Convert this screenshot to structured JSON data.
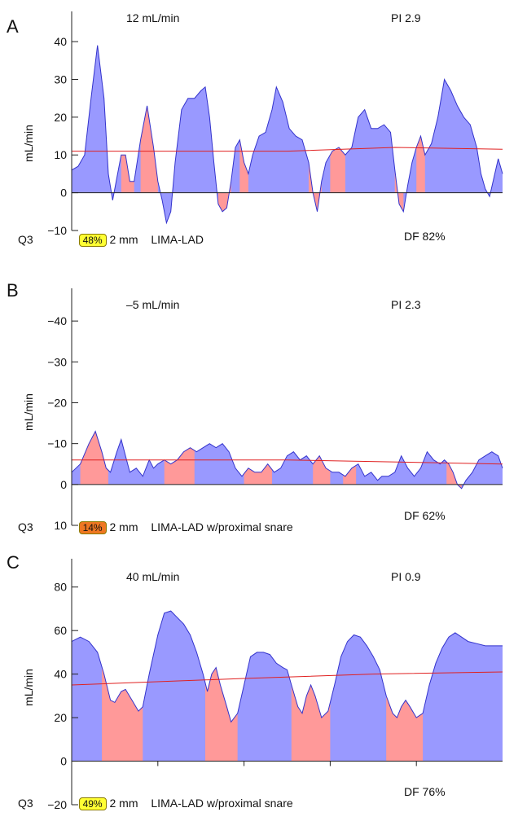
{
  "chart_data": [
    {
      "type": "area",
      "panel_letter": "A",
      "flow": "12 mL/min",
      "pi": "PI 2.9",
      "ylabel": "mL/min",
      "yticks": [
        "40",
        "30",
        "20",
        "10",
        "0",
        "−10"
      ],
      "ytick_values": [
        40,
        30,
        20,
        10,
        0,
        -10
      ],
      "ylim": [
        -10,
        48
      ],
      "inverted": false,
      "quartile": "Q3",
      "badge_text": "48%",
      "badge_color": "#ffff33",
      "probe": "2 mm",
      "vessel": "LIMA-LAD",
      "df": "DF 82%",
      "fill_color": "#9999ff",
      "reverse_color": "#ff9999",
      "mean_line": [
        [
          0,
          11
        ],
        [
          0.5,
          11
        ],
        [
          0.75,
          12
        ],
        [
          1.0,
          11.5
        ]
      ],
      "waveform": [
        [
          0,
          6
        ],
        [
          0.015,
          7
        ],
        [
          0.03,
          10
        ],
        [
          0.045,
          25
        ],
        [
          0.06,
          39
        ],
        [
          0.075,
          25
        ],
        [
          0.085,
          5
        ],
        [
          0.095,
          -2
        ],
        [
          0.105,
          4
        ],
        [
          0.115,
          10
        ],
        [
          0.125,
          10
        ],
        [
          0.135,
          3
        ],
        [
          0.145,
          3
        ],
        [
          0.16,
          14
        ],
        [
          0.175,
          23
        ],
        [
          0.19,
          12
        ],
        [
          0.2,
          3
        ],
        [
          0.21,
          -2
        ],
        [
          0.22,
          -8
        ],
        [
          0.23,
          -5
        ],
        [
          0.24,
          8
        ],
        [
          0.255,
          22
        ],
        [
          0.27,
          25
        ],
        [
          0.285,
          25
        ],
        [
          0.3,
          27
        ],
        [
          0.31,
          28
        ],
        [
          0.32,
          20
        ],
        [
          0.33,
          8
        ],
        [
          0.34,
          -3
        ],
        [
          0.35,
          -5
        ],
        [
          0.36,
          -4
        ],
        [
          0.37,
          3
        ],
        [
          0.38,
          12
        ],
        [
          0.39,
          14
        ],
        [
          0.4,
          8
        ],
        [
          0.41,
          5
        ],
        [
          0.42,
          10
        ],
        [
          0.435,
          15
        ],
        [
          0.45,
          16
        ],
        [
          0.465,
          22
        ],
        [
          0.475,
          28
        ],
        [
          0.49,
          24
        ],
        [
          0.505,
          17
        ],
        [
          0.52,
          15
        ],
        [
          0.535,
          14
        ],
        [
          0.55,
          8
        ],
        [
          0.56,
          0
        ],
        [
          0.57,
          -5
        ],
        [
          0.58,
          3
        ],
        [
          0.59,
          8
        ],
        [
          0.605,
          11
        ],
        [
          0.62,
          12
        ],
        [
          0.635,
          10
        ],
        [
          0.65,
          12
        ],
        [
          0.665,
          20
        ],
        [
          0.68,
          22
        ],
        [
          0.695,
          17
        ],
        [
          0.71,
          17
        ],
        [
          0.725,
          18
        ],
        [
          0.74,
          16
        ],
        [
          0.75,
          6
        ],
        [
          0.76,
          -3
        ],
        [
          0.77,
          -5
        ],
        [
          0.78,
          2
        ],
        [
          0.79,
          8
        ],
        [
          0.8,
          12
        ],
        [
          0.81,
          15
        ],
        [
          0.82,
          10
        ],
        [
          0.835,
          13
        ],
        [
          0.85,
          20
        ],
        [
          0.865,
          30
        ],
        [
          0.88,
          27
        ],
        [
          0.895,
          23
        ],
        [
          0.91,
          20
        ],
        [
          0.925,
          18
        ],
        [
          0.94,
          12
        ],
        [
          0.95,
          5
        ],
        [
          0.96,
          1
        ],
        [
          0.97,
          -1
        ],
        [
          0.98,
          4
        ],
        [
          0.99,
          9
        ],
        [
          1.0,
          5
        ]
      ],
      "reverse_bands": [
        [
          0.115,
          0.145
        ],
        [
          0.16,
          0.2
        ],
        [
          0.34,
          0.37
        ],
        [
          0.39,
          0.41
        ],
        [
          0.55,
          0.58
        ],
        [
          0.6,
          0.635
        ],
        [
          0.75,
          0.77
        ],
        [
          0.8,
          0.82
        ]
      ]
    },
    {
      "type": "area",
      "panel_letter": "B",
      "flow": "–5 mL/min",
      "pi": "PI 2.3",
      "ylabel": "mL/min",
      "yticks": [
        "−40",
        "−30",
        "−20",
        "−10",
        "0",
        "10"
      ],
      "ytick_values": [
        -40,
        -30,
        -20,
        -10,
        0,
        10
      ],
      "ylim": [
        10,
        -48
      ],
      "inverted": true,
      "quartile": "Q3",
      "badge_text": "14%",
      "badge_color": "#ee7722",
      "probe": "2 mm",
      "vessel": "LIMA-LAD w/proximal snare",
      "df": "DF 62%",
      "fill_color": "#9999ff",
      "reverse_color": "#ff9999",
      "mean_line": [
        [
          0,
          -6
        ],
        [
          0.5,
          -6
        ],
        [
          1.0,
          -5
        ]
      ],
      "waveform": [
        [
          0,
          -3
        ],
        [
          0.02,
          -5
        ],
        [
          0.04,
          -10
        ],
        [
          0.055,
          -13
        ],
        [
          0.07,
          -8
        ],
        [
          0.08,
          -4
        ],
        [
          0.09,
          -3
        ],
        [
          0.105,
          -8
        ],
        [
          0.115,
          -11
        ],
        [
          0.125,
          -7
        ],
        [
          0.135,
          -3
        ],
        [
          0.15,
          -4
        ],
        [
          0.165,
          -2
        ],
        [
          0.18,
          -6
        ],
        [
          0.19,
          -4
        ],
        [
          0.2,
          -5
        ],
        [
          0.215,
          -6
        ],
        [
          0.23,
          -5
        ],
        [
          0.245,
          -6
        ],
        [
          0.26,
          -8
        ],
        [
          0.275,
          -9
        ],
        [
          0.29,
          -8
        ],
        [
          0.305,
          -9
        ],
        [
          0.32,
          -10
        ],
        [
          0.335,
          -9
        ],
        [
          0.35,
          -10
        ],
        [
          0.365,
          -8
        ],
        [
          0.38,
          -4
        ],
        [
          0.395,
          -2
        ],
        [
          0.41,
          -4
        ],
        [
          0.425,
          -3
        ],
        [
          0.44,
          -3
        ],
        [
          0.455,
          -5
        ],
        [
          0.47,
          -3
        ],
        [
          0.485,
          -4
        ],
        [
          0.5,
          -7
        ],
        [
          0.515,
          -8
        ],
        [
          0.53,
          -6
        ],
        [
          0.545,
          -7
        ],
        [
          0.56,
          -5
        ],
        [
          0.575,
          -7
        ],
        [
          0.59,
          -4
        ],
        [
          0.605,
          -3
        ],
        [
          0.62,
          -3
        ],
        [
          0.635,
          -2
        ],
        [
          0.65,
          -4
        ],
        [
          0.665,
          -5
        ],
        [
          0.68,
          -2
        ],
        [
          0.695,
          -3
        ],
        [
          0.71,
          -1
        ],
        [
          0.72,
          -2
        ],
        [
          0.735,
          -2
        ],
        [
          0.75,
          -3
        ],
        [
          0.765,
          -7
        ],
        [
          0.78,
          -4
        ],
        [
          0.795,
          -2
        ],
        [
          0.81,
          -4
        ],
        [
          0.825,
          -8
        ],
        [
          0.84,
          -6
        ],
        [
          0.855,
          -5
        ],
        [
          0.865,
          -6
        ],
        [
          0.875,
          -5
        ],
        [
          0.885,
          -3
        ],
        [
          0.895,
          0
        ],
        [
          0.905,
          1
        ],
        [
          0.915,
          -1
        ],
        [
          0.93,
          -3
        ],
        [
          0.945,
          -6
        ],
        [
          0.96,
          -7
        ],
        [
          0.975,
          -8
        ],
        [
          0.99,
          -7
        ],
        [
          1.0,
          -4
        ]
      ],
      "reverse_bands": [
        [
          0.02,
          0.085
        ],
        [
          0.215,
          0.285
        ],
        [
          0.4,
          0.465
        ],
        [
          0.56,
          0.6
        ],
        [
          0.63,
          0.66
        ],
        [
          0.87,
          0.905
        ]
      ]
    },
    {
      "type": "area",
      "panel_letter": "C",
      "flow": "40 mL/min",
      "pi": "PI 0.9",
      "ylabel": "mL/min",
      "yticks": [
        "80",
        "60",
        "40",
        "20",
        "0",
        "−20"
      ],
      "ytick_values": [
        80,
        60,
        40,
        20,
        0,
        -20
      ],
      "ylim": [
        -20,
        93
      ],
      "inverted": false,
      "quartile": "Q3",
      "badge_text": "49%",
      "badge_color": "#ffff33",
      "probe": "2 mm",
      "vessel": "LIMA-LAD w/proximal snare",
      "df": "DF 76%",
      "fill_color": "#9999ff",
      "reverse_color": "#ff9999",
      "mean_line": [
        [
          0,
          35
        ],
        [
          0.4,
          38
        ],
        [
          0.7,
          40
        ],
        [
          1.0,
          41
        ]
      ],
      "waveform": [
        [
          0,
          55
        ],
        [
          0.02,
          57
        ],
        [
          0.04,
          55
        ],
        [
          0.06,
          50
        ],
        [
          0.075,
          40
        ],
        [
          0.09,
          28
        ],
        [
          0.1,
          27
        ],
        [
          0.115,
          32
        ],
        [
          0.125,
          33
        ],
        [
          0.14,
          28
        ],
        [
          0.155,
          23
        ],
        [
          0.165,
          25
        ],
        [
          0.18,
          40
        ],
        [
          0.2,
          58
        ],
        [
          0.215,
          68
        ],
        [
          0.23,
          69
        ],
        [
          0.245,
          66
        ],
        [
          0.26,
          63
        ],
        [
          0.275,
          58
        ],
        [
          0.29,
          50
        ],
        [
          0.305,
          40
        ],
        [
          0.315,
          32
        ],
        [
          0.325,
          40
        ],
        [
          0.335,
          43
        ],
        [
          0.345,
          35
        ],
        [
          0.36,
          25
        ],
        [
          0.37,
          18
        ],
        [
          0.385,
          22
        ],
        [
          0.4,
          35
        ],
        [
          0.415,
          48
        ],
        [
          0.43,
          50
        ],
        [
          0.445,
          50
        ],
        [
          0.46,
          49
        ],
        [
          0.475,
          45
        ],
        [
          0.49,
          43
        ],
        [
          0.5,
          42
        ],
        [
          0.51,
          35
        ],
        [
          0.525,
          25
        ],
        [
          0.535,
          22
        ],
        [
          0.545,
          30
        ],
        [
          0.555,
          35
        ],
        [
          0.565,
          30
        ],
        [
          0.58,
          20
        ],
        [
          0.595,
          23
        ],
        [
          0.61,
          35
        ],
        [
          0.625,
          48
        ],
        [
          0.64,
          55
        ],
        [
          0.655,
          58
        ],
        [
          0.67,
          57
        ],
        [
          0.685,
          53
        ],
        [
          0.7,
          48
        ],
        [
          0.715,
          42
        ],
        [
          0.73,
          30
        ],
        [
          0.745,
          22
        ],
        [
          0.755,
          20
        ],
        [
          0.765,
          25
        ],
        [
          0.775,
          28
        ],
        [
          0.785,
          25
        ],
        [
          0.8,
          20
        ],
        [
          0.815,
          22
        ],
        [
          0.83,
          35
        ],
        [
          0.845,
          45
        ],
        [
          0.86,
          52
        ],
        [
          0.875,
          57
        ],
        [
          0.89,
          59
        ],
        [
          0.905,
          57
        ],
        [
          0.92,
          55
        ],
        [
          0.94,
          54
        ],
        [
          0.96,
          53
        ],
        [
          1.0,
          53
        ]
      ],
      "reverse_bands": [
        [
          0.07,
          0.165
        ],
        [
          0.31,
          0.385
        ],
        [
          0.51,
          0.6
        ],
        [
          0.73,
          0.815
        ]
      ]
    }
  ]
}
